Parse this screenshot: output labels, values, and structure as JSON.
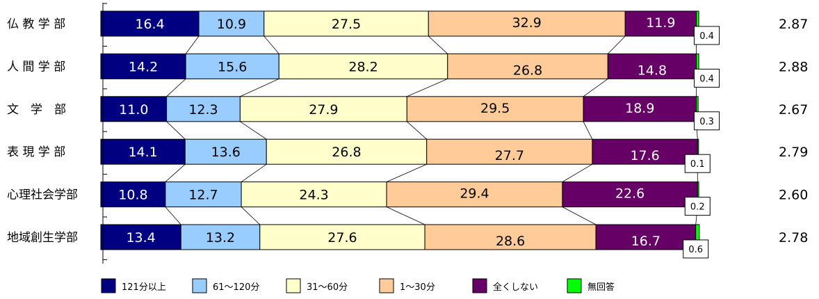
{
  "chart_data": {
    "type": "bar",
    "orientation": "horizontal",
    "stacked": true,
    "percent": true,
    "categories": [
      "仏 教 学 部",
      "人 間 学 部",
      "文　学　部",
      "表 現 学 部",
      "心理社会学部",
      "地域創生学部"
    ],
    "series": [
      {
        "name": "121分以上",
        "color": "#000080",
        "values": [
          16.4,
          14.2,
          11.0,
          14.1,
          10.8,
          13.4
        ]
      },
      {
        "name": "61～120分",
        "color": "#99ccff",
        "values": [
          10.9,
          15.6,
          12.3,
          13.6,
          12.7,
          13.2
        ]
      },
      {
        "name": "31～60分",
        "color": "#ffffcc",
        "values": [
          27.5,
          28.2,
          27.9,
          26.8,
          24.3,
          27.6
        ]
      },
      {
        "name": "1～30分",
        "color": "#ffcc99",
        "values": [
          32.9,
          26.8,
          29.5,
          27.7,
          29.4,
          28.6
        ]
      },
      {
        "name": "全くしない",
        "color": "#660066",
        "values": [
          11.9,
          14.8,
          18.9,
          17.6,
          22.6,
          16.7
        ]
      },
      {
        "name": "無回答",
        "color": "#00ff00",
        "values": [
          0.4,
          0.4,
          0.3,
          0.1,
          0.2,
          0.6
        ]
      }
    ],
    "right_values": [
      "2.87",
      "2.88",
      "2.67",
      "2.79",
      "2.60",
      "2.78"
    ],
    "legend_position": "bottom",
    "grid": false,
    "xlim": [
      0,
      100
    ]
  }
}
